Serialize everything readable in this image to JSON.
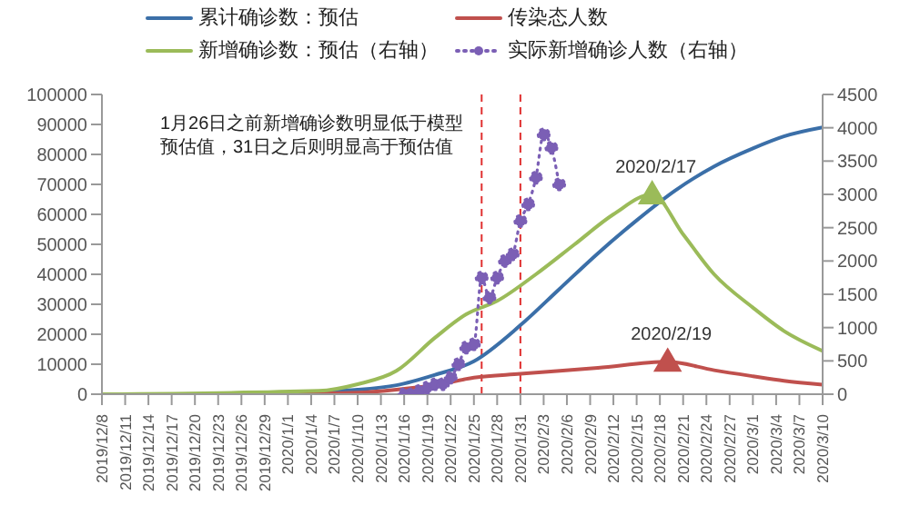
{
  "chart_data": {
    "type": "line",
    "xlim": [
      "2019-12-08",
      "2020-03-10"
    ],
    "xticks": [
      {
        "value": "2019-12-08",
        "label": "2019/12/8"
      },
      {
        "value": "2019-12-11",
        "label": "2019/12/11"
      },
      {
        "value": "2019-12-14",
        "label": "2019/12/14"
      },
      {
        "value": "2019-12-17",
        "label": "2019/12/17"
      },
      {
        "value": "2019-12-20",
        "label": "2019/12/20"
      },
      {
        "value": "2019-12-23",
        "label": "2019/12/23"
      },
      {
        "value": "2019-12-26",
        "label": "2019/12/26"
      },
      {
        "value": "2019-12-29",
        "label": "2019/12/29"
      },
      {
        "value": "2020-01-01",
        "label": "2020/1/1"
      },
      {
        "value": "2020-01-04",
        "label": "2020/1/4"
      },
      {
        "value": "2020-01-07",
        "label": "2020/1/7"
      },
      {
        "value": "2020-01-10",
        "label": "2020/1/10"
      },
      {
        "value": "2020-01-13",
        "label": "2020/1/13"
      },
      {
        "value": "2020-01-16",
        "label": "2020/1/16"
      },
      {
        "value": "2020-01-19",
        "label": "2020/1/19"
      },
      {
        "value": "2020-01-22",
        "label": "2020/1/22"
      },
      {
        "value": "2020-01-25",
        "label": "2020/1/25"
      },
      {
        "value": "2020-01-28",
        "label": "2020/1/28"
      },
      {
        "value": "2020-01-31",
        "label": "2020/1/31"
      },
      {
        "value": "2020-02-03",
        "label": "2020/2/3"
      },
      {
        "value": "2020-02-06",
        "label": "2020/2/6"
      },
      {
        "value": "2020-02-09",
        "label": "2020/2/9"
      },
      {
        "value": "2020-02-12",
        "label": "2020/2/12"
      },
      {
        "value": "2020-02-15",
        "label": "2020/2/15"
      },
      {
        "value": "2020-02-18",
        "label": "2020/2/18"
      },
      {
        "value": "2020-02-21",
        "label": "2020/2/21"
      },
      {
        "value": "2020-02-24",
        "label": "2020/2/24"
      },
      {
        "value": "2020-02-27",
        "label": "2020/2/27"
      },
      {
        "value": "2020-03-01",
        "label": "2020/3/1"
      },
      {
        "value": "2020-03-04",
        "label": "2020/3/4"
      },
      {
        "value": "2020-03-07",
        "label": "2020/3/7"
      },
      {
        "value": "2020-03-10",
        "label": "2020/3/10"
      }
    ],
    "ylim": [
      0,
      100000
    ],
    "yticks": [
      0,
      10000,
      20000,
      30000,
      40000,
      50000,
      60000,
      70000,
      80000,
      90000,
      100000
    ],
    "y2lim": [
      0,
      4500
    ],
    "y2ticks": [
      0,
      500,
      1000,
      1500,
      2000,
      2500,
      3000,
      3500,
      4000,
      4500
    ],
    "legend": "top",
    "marker": "none",
    "line_style": "solid",
    "series": [
      {
        "name": "累计确诊数：预估",
        "color": "#3b6fa8",
        "x": [
          "2020-01-06",
          "2020-01-10",
          "2020-01-15",
          "2020-01-20",
          "2020-01-25",
          "2020-01-31",
          "2020-02-05",
          "2020-02-10",
          "2020-02-15",
          "2020-02-20",
          "2020-02-25",
          "2020-03-01",
          "2020-03-05",
          "2020-03-10"
        ],
        "values": [
          1000,
          1500,
          3000,
          6500,
          11000,
          23000,
          35000,
          47000,
          58000,
          68000,
          76000,
          82000,
          86000,
          89000
        ]
      },
      {
        "name": "传染态人数",
        "color": "#c0504d",
        "x": [
          "2019-12-08",
          "2020-01-01",
          "2020-01-10",
          "2020-01-15",
          "2020-01-20",
          "2020-01-25",
          "2020-01-31",
          "2020-02-10",
          "2020-02-19",
          "2020-02-25",
          "2020-03-01",
          "2020-03-05",
          "2020-03-10"
        ],
        "values": [
          0,
          100,
          500,
          1500,
          3000,
          5500,
          6800,
          8800,
          10800,
          8000,
          6000,
          4500,
          3200
        ]
      },
      {
        "name": "新增确诊数：预估（右轴）",
        "color": "#9bbb59",
        "axis": "y2",
        "x": [
          "2019-12-08",
          "2020-01-05",
          "2020-01-10",
          "2020-01-15",
          "2020-01-20",
          "2020-01-24",
          "2020-01-28",
          "2020-02-02",
          "2020-02-07",
          "2020-02-12",
          "2020-02-17",
          "2020-02-21",
          "2020-02-25",
          "2020-03-01",
          "2020-03-05",
          "2020-03-10"
        ],
        "values": [
          0,
          50,
          150,
          350,
          850,
          1200,
          1400,
          1800,
          2250,
          2700,
          3000,
          2400,
          1800,
          1300,
          950,
          650
        ]
      },
      {
        "name": "实际新增确诊人数（右轴）",
        "color": "#7b5fb5",
        "axis": "y2",
        "marker": "circle",
        "line_style": "dotted",
        "x": [
          "2020-01-16",
          "2020-01-17",
          "2020-01-18",
          "2020-01-19",
          "2020-01-20",
          "2020-01-21",
          "2020-01-22",
          "2020-01-23",
          "2020-01-24",
          "2020-01-25",
          "2020-01-26",
          "2020-01-27",
          "2020-01-28",
          "2020-01-29",
          "2020-01-30",
          "2020-01-31",
          "2020-02-01",
          "2020-02-02",
          "2020-02-03",
          "2020-02-04",
          "2020-02-05"
        ],
        "values": [
          0,
          0,
          50,
          100,
          150,
          150,
          250,
          450,
          700,
          750,
          1750,
          1450,
          1750,
          2000,
          2100,
          2600,
          2850,
          3250,
          3900,
          3700,
          3150
        ]
      }
    ],
    "ref_lines": [
      {
        "axis": "x",
        "value": "2020-01-26",
        "color": "#e03030",
        "line_style": "dashed"
      },
      {
        "axis": "x",
        "value": "2020-01-31",
        "color": "#e03030",
        "line_style": "dashed"
      }
    ],
    "annotations": [
      "1月26日之前新增确诊数明显低于模型预估值，31日之后则明显高于预估值",
      {
        "text": "2020/2/17",
        "x": "2020-02-17",
        "y": 66700
      },
      {
        "text": "2020/2/19",
        "x": "2020-02-19",
        "y": 10800
      }
    ]
  }
}
